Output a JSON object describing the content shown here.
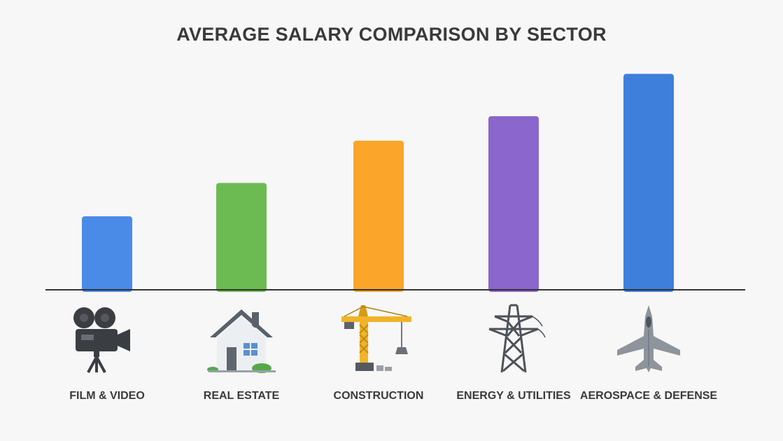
{
  "chart_data": {
    "type": "bar",
    "title": "AVERAGE SALARY COMPARISON BY SECTOR",
    "xlabel": "",
    "ylabel": "",
    "categories": [
      "FILM & VIDEO",
      "REAL ESTATE",
      "CONSTRUCTION",
      "ENERGY & UTILITIES",
      "AEROSPACE & DEFENSE"
    ],
    "values": [
      33,
      48,
      67,
      78,
      97
    ],
    "ylim": [
      0,
      100
    ],
    "grid": false,
    "colors": [
      "#4a8be8",
      "#6cbb52",
      "#fba52b",
      "#8b66cc",
      "#3f7fdc"
    ],
    "icons": [
      "movie-camera-icon",
      "house-icon",
      "tower-crane-icon",
      "power-pylon-icon",
      "fighter-jet-icon"
    ]
  }
}
